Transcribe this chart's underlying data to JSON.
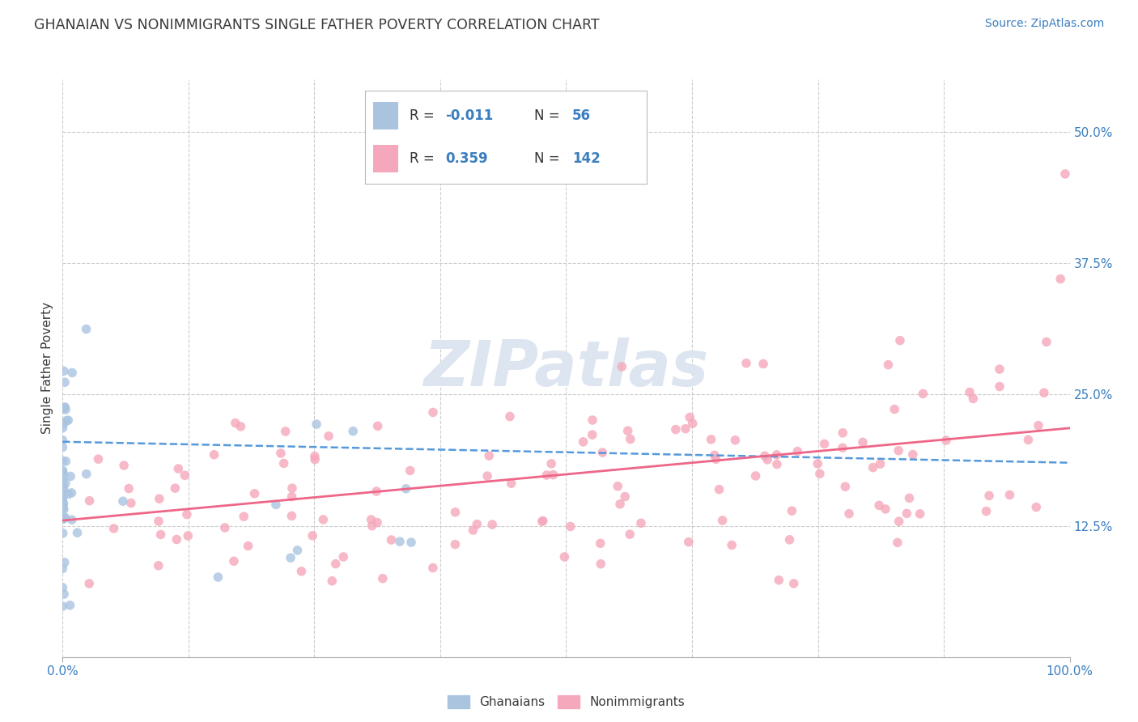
{
  "title": "GHANAIAN VS NONIMMIGRANTS SINGLE FATHER POVERTY CORRELATION CHART",
  "source_text": "Source: ZipAtlas.com",
  "ylabel": "Single Father Poverty",
  "legend_labels": [
    "Ghanaians",
    "Nonimmigrants"
  ],
  "title_color": "#3a3a3a",
  "source_color": "#3a7ebf",
  "axis_label_color": "#3a3a3a",
  "tick_label_color": "#3a7ebf",
  "blue_scatter_color": "#aac4e0",
  "pink_scatter_color": "#f5a8bb",
  "blue_line_color": "#5599dd",
  "pink_line_color": "#ee6688",
  "grid_color": "#cccccc",
  "watermark_color": "#dde5f0",
  "xlim": [
    0.0,
    1.0
  ],
  "ylim": [
    0.0,
    0.55
  ],
  "ytick_vals": [
    0.125,
    0.25,
    0.375,
    0.5
  ],
  "ytick_labels": [
    "12.5%",
    "25.0%",
    "37.5%",
    "50.0%"
  ],
  "blue_trend_y_start": 0.205,
  "blue_trend_y_end": 0.185,
  "pink_trend_y_start": 0.13,
  "pink_trend_y_end": 0.218,
  "blue_seed": 7,
  "pink_seed": 99
}
